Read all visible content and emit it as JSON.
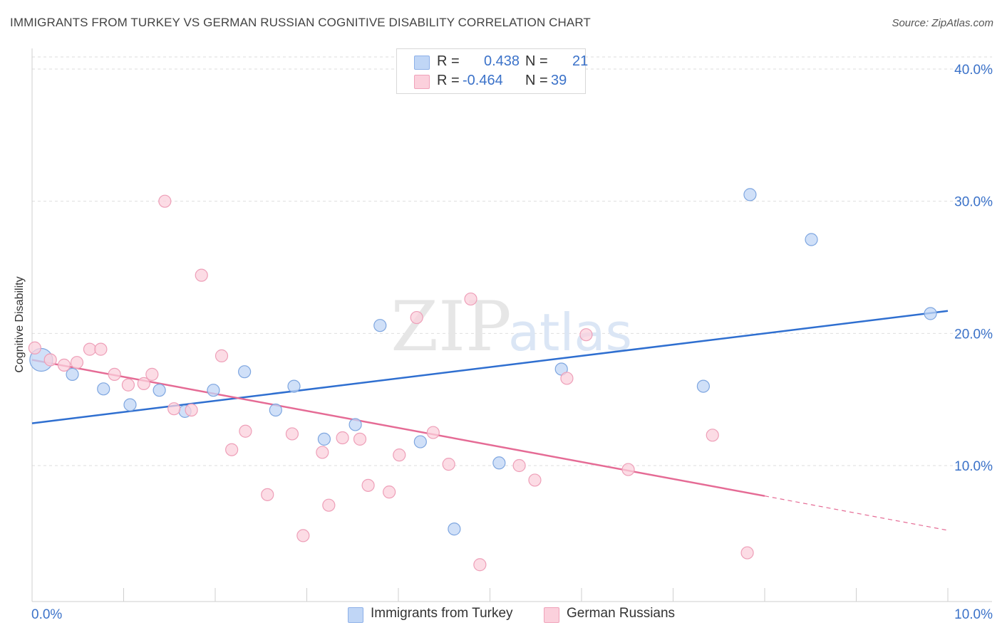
{
  "title": "IMMIGRANTS FROM TURKEY VS GERMAN RUSSIAN COGNITIVE DISABILITY CORRELATION CHART",
  "source": "Source: ZipAtlas.com",
  "watermark": {
    "zip": "ZIP",
    "atlas": "atlas"
  },
  "legend": {
    "r_label": "R =",
    "n_label": "N =",
    "series1": {
      "r": "0.438",
      "n": "21"
    },
    "series2": {
      "r": "-0.464",
      "n": "39"
    }
  },
  "colors": {
    "blue_fill": "#c0d6f6",
    "blue_stroke": "#7ea6e0",
    "blue_line": "#2f6fd0",
    "pink_fill": "#fbd0dc",
    "pink_stroke": "#ee9fb8",
    "pink_line": "#e56b95",
    "grid": "#dedede",
    "tick_text": "#3b72c9"
  },
  "chart_data": {
    "type": "scatter",
    "title": "IMMIGRANTS FROM TURKEY VS GERMAN RUSSIAN COGNITIVE DISABILITY CORRELATION CHART",
    "xlabel": "",
    "ylabel": "Cognitive Disability",
    "xlim": [
      0,
      10
    ],
    "ylim": [
      0,
      40
    ],
    "x_tick_labels": [
      "0.0%",
      "10.0%"
    ],
    "y_ticks": [
      10,
      20,
      30,
      40
    ],
    "y_tick_labels": [
      "10.0%",
      "20.0%",
      "30.0%",
      "40.0%"
    ],
    "legend_position": "top-center",
    "series": [
      {
        "name": "Immigrants from Turkey",
        "color": "blue",
        "r": 0.438,
        "n": 21,
        "trend": {
          "x": [
            0,
            10
          ],
          "y": [
            13.2,
            21.7
          ]
        },
        "points": [
          {
            "x": 0.1,
            "y": 18.0,
            "big": true
          },
          {
            "x": 0.44,
            "y": 16.9
          },
          {
            "x": 0.78,
            "y": 15.8
          },
          {
            "x": 1.07,
            "y": 14.6
          },
          {
            "x": 1.39,
            "y": 15.7
          },
          {
            "x": 1.67,
            "y": 14.1
          },
          {
            "x": 1.98,
            "y": 15.7
          },
          {
            "x": 2.32,
            "y": 17.1
          },
          {
            "x": 2.66,
            "y": 14.2
          },
          {
            "x": 2.86,
            "y": 16.0
          },
          {
            "x": 3.19,
            "y": 12.0
          },
          {
            "x": 3.53,
            "y": 13.1
          },
          {
            "x": 3.8,
            "y": 20.6
          },
          {
            "x": 4.24,
            "y": 11.8
          },
          {
            "x": 4.61,
            "y": 5.2
          },
          {
            "x": 5.1,
            "y": 10.2
          },
          {
            "x": 5.78,
            "y": 17.3
          },
          {
            "x": 7.33,
            "y": 16.0
          },
          {
            "x": 7.84,
            "y": 30.5
          },
          {
            "x": 8.51,
            "y": 27.1
          },
          {
            "x": 9.81,
            "y": 21.5
          }
        ]
      },
      {
        "name": "German Russians",
        "color": "pink",
        "r": -0.464,
        "n": 39,
        "trend": {
          "x": [
            0,
            8.0
          ],
          "y": [
            18.0,
            7.7
          ]
        },
        "trend_dashed": {
          "x": [
            8.0,
            10
          ],
          "y": [
            7.7,
            5.1
          ]
        },
        "points": [
          {
            "x": 0.03,
            "y": 18.9
          },
          {
            "x": 0.2,
            "y": 18.0
          },
          {
            "x": 0.35,
            "y": 17.6
          },
          {
            "x": 0.49,
            "y": 17.8
          },
          {
            "x": 0.63,
            "y": 18.8
          },
          {
            "x": 0.75,
            "y": 18.8
          },
          {
            "x": 0.9,
            "y": 16.9
          },
          {
            "x": 1.05,
            "y": 16.1
          },
          {
            "x": 1.22,
            "y": 16.2
          },
          {
            "x": 1.31,
            "y": 16.9
          },
          {
            "x": 1.45,
            "y": 30.0
          },
          {
            "x": 1.55,
            "y": 14.3
          },
          {
            "x": 1.74,
            "y": 14.2
          },
          {
            "x": 1.85,
            "y": 24.4
          },
          {
            "x": 2.07,
            "y": 18.3
          },
          {
            "x": 2.18,
            "y": 11.2
          },
          {
            "x": 2.33,
            "y": 12.6
          },
          {
            "x": 2.57,
            "y": 7.8
          },
          {
            "x": 2.84,
            "y": 12.4
          },
          {
            "x": 2.96,
            "y": 4.7
          },
          {
            "x": 3.17,
            "y": 11.0
          },
          {
            "x": 3.24,
            "y": 7.0
          },
          {
            "x": 3.39,
            "y": 12.1
          },
          {
            "x": 3.58,
            "y": 12.0
          },
          {
            "x": 3.67,
            "y": 8.5
          },
          {
            "x": 3.9,
            "y": 8.0
          },
          {
            "x": 4.01,
            "y": 10.8
          },
          {
            "x": 4.2,
            "y": 21.2
          },
          {
            "x": 4.38,
            "y": 12.5
          },
          {
            "x": 4.55,
            "y": 10.1
          },
          {
            "x": 4.79,
            "y": 22.6
          },
          {
            "x": 4.89,
            "y": 2.5
          },
          {
            "x": 5.32,
            "y": 10.0
          },
          {
            "x": 5.49,
            "y": 8.9
          },
          {
            "x": 5.84,
            "y": 16.6
          },
          {
            "x": 6.05,
            "y": 19.9
          },
          {
            "x": 6.51,
            "y": 9.7
          },
          {
            "x": 7.43,
            "y": 12.3
          },
          {
            "x": 7.81,
            "y": 3.4
          }
        ]
      }
    ]
  }
}
